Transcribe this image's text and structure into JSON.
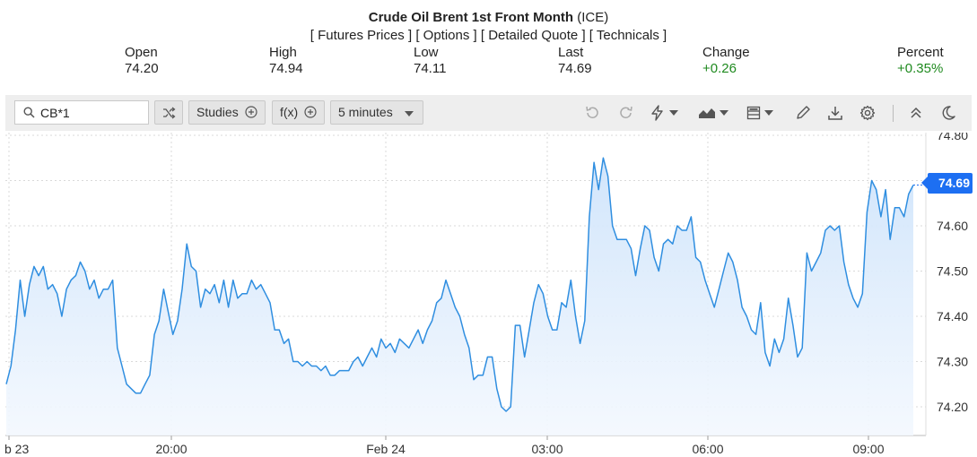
{
  "header": {
    "title": "Crude Oil Brent 1st Front Month",
    "exchange": "(ICE)",
    "links": [
      "[ Futures Prices ]",
      "[ Options ]",
      "[ Detailed Quote ]",
      "[ Technicals ]"
    ]
  },
  "quote": {
    "open_label": "Open",
    "open": "74.20",
    "high_label": "High",
    "high": "74.94",
    "low_label": "Low",
    "low": "74.11",
    "last_label": "Last",
    "last": "74.69",
    "change_label": "Change",
    "change": "+0.26",
    "percent_label": "Percent",
    "percent": "+0.35%"
  },
  "toolbar": {
    "symbol": "CB*1",
    "studies_label": "Studies",
    "fx_label": "f(x)",
    "interval_label": "5 minutes",
    "icons": [
      "search-icon",
      "compare-icon",
      "plus-circle-icon",
      "undo-icon",
      "redo-icon",
      "lightning-icon",
      "area-chart-icon",
      "template-icon",
      "pencil-icon",
      "download-icon",
      "gear-icon",
      "collapse-icon",
      "moon-icon"
    ]
  },
  "colors": {
    "line": "#2f8ee0",
    "fill_top": "#cfe4fb",
    "fill_bottom": "#f3f8fe",
    "price_tag": "#1d6ff2",
    "up": "#1f8a1f"
  },
  "chart_data": {
    "type": "area",
    "last_price_label": "74.69",
    "ylim": [
      74.17,
      74.81
    ],
    "yticks": [
      "74.80",
      "74.70",
      "74.60",
      "74.50",
      "74.40",
      "74.30",
      "74.20"
    ],
    "xtick_labels": [
      "b 23",
      "20:00",
      "Feb 24",
      "03:00",
      "06:00",
      "09:00"
    ],
    "grid": true,
    "series": [
      {
        "values": [
          74.25,
          74.29,
          74.37,
          74.48,
          74.4,
          74.47,
          74.51,
          74.49,
          74.51,
          74.46,
          74.47,
          74.45,
          74.4,
          74.46,
          74.48,
          74.49,
          74.52,
          74.5,
          74.46,
          74.48,
          74.44,
          74.46,
          74.46,
          74.48,
          74.33,
          74.29,
          74.25,
          74.24,
          74.23,
          74.23,
          74.25,
          74.27,
          74.36,
          74.39,
          74.46,
          74.41,
          74.36,
          74.39,
          74.46,
          74.56,
          74.51,
          74.5,
          74.42,
          74.46,
          74.45,
          74.47,
          74.43,
          74.48,
          74.42,
          74.48,
          74.44,
          74.45,
          74.45,
          74.48,
          74.46,
          74.47,
          74.45,
          74.43,
          74.37,
          74.37,
          74.34,
          74.35,
          74.3,
          74.3,
          74.29,
          74.3,
          74.29,
          74.29,
          74.28,
          74.29,
          74.27,
          74.27,
          74.28,
          74.28,
          74.28,
          74.3,
          74.31,
          74.29,
          74.31,
          74.33,
          74.31,
          74.35,
          74.33,
          74.34,
          74.32,
          74.35,
          74.34,
          74.33,
          74.35,
          74.37,
          74.34,
          74.37,
          74.39,
          74.43,
          74.44,
          74.48,
          74.45,
          74.42,
          74.4,
          74.36,
          74.33,
          74.26,
          74.27,
          74.27,
          74.31,
          74.31,
          74.24,
          74.2,
          74.19,
          74.2,
          74.38,
          74.38,
          74.31,
          74.37,
          74.43,
          74.47,
          74.45,
          74.4,
          74.37,
          74.37,
          74.43,
          74.42,
          74.48,
          74.4,
          74.34,
          74.39,
          74.62,
          74.74,
          74.68,
          74.75,
          74.71,
          74.6,
          74.57,
          74.57,
          74.57,
          74.55,
          74.49,
          74.55,
          74.6,
          74.59,
          74.53,
          74.5,
          74.56,
          74.57,
          74.56,
          74.6,
          74.59,
          74.59,
          74.62,
          74.53,
          74.52,
          74.48,
          74.45,
          74.42,
          74.46,
          74.5,
          74.54,
          74.52,
          74.48,
          74.42,
          74.4,
          74.37,
          74.36,
          74.43,
          74.32,
          74.29,
          74.35,
          74.32,
          74.35,
          74.44,
          74.38,
          74.31,
          74.33,
          74.54,
          74.5,
          74.52,
          74.54,
          74.59,
          74.6,
          74.59,
          74.6,
          74.52,
          74.47,
          74.44,
          74.42,
          74.45,
          74.63,
          74.7,
          74.68,
          74.62,
          74.68,
          74.57,
          74.64,
          74.64,
          74.62,
          74.67,
          74.69
        ]
      }
    ]
  }
}
